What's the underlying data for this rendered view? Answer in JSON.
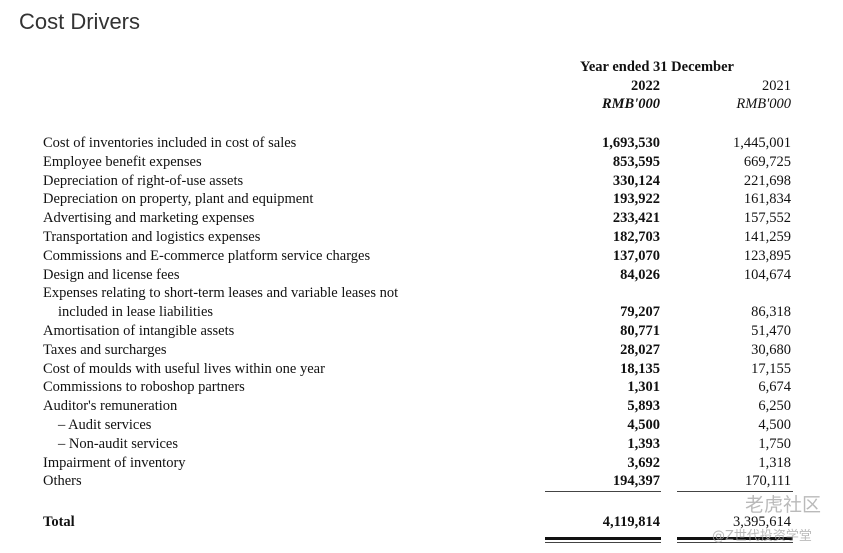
{
  "title": "Cost Drivers",
  "header": {
    "period": "Year ended 31 December",
    "col1_year": "2022",
    "col1_unit": "RMB'000",
    "col2_year": "2021",
    "col2_unit": "RMB'000"
  },
  "rows": [
    {
      "label": "Cost of inventories included in cost of sales",
      "v2022": "1,693,530",
      "v2021": "1,445,001"
    },
    {
      "label": "Employee benefit expenses",
      "v2022": "853,595",
      "v2021": "669,725"
    },
    {
      "label": "Depreciation of right-of-use assets",
      "v2022": "330,124",
      "v2021": "221,698"
    },
    {
      "label": "Depreciation on property, plant and equipment",
      "v2022": "193,922",
      "v2021": "161,834"
    },
    {
      "label": "Advertising and marketing expenses",
      "v2022": "233,421",
      "v2021": "157,552"
    },
    {
      "label": "Transportation and logistics expenses",
      "v2022": "182,703",
      "v2021": "141,259"
    },
    {
      "label": "Commissions and E-commerce platform service charges",
      "v2022": "137,070",
      "v2021": "123,895"
    },
    {
      "label": "Design and license fees",
      "v2022": "84,026",
      "v2021": "104,674"
    },
    {
      "label": "Expenses relating to short-term leases and variable leases not",
      "label2": "included in lease liabilities",
      "v2022": "79,207",
      "v2021": "86,318"
    },
    {
      "label": "Amortisation of intangible assets",
      "v2022": "80,771",
      "v2021": "51,470"
    },
    {
      "label": "Taxes and surcharges",
      "v2022": "28,027",
      "v2021": "30,680"
    },
    {
      "label": "Cost of moulds with useful lives within one year",
      "v2022": "18,135",
      "v2021": "17,155"
    },
    {
      "label": "Commissions to roboshop partners",
      "v2022": "1,301",
      "v2021": "6,674"
    },
    {
      "label": "Auditor's remuneration",
      "v2022": "5,893",
      "v2021": "6,250"
    },
    {
      "label": "– Audit services",
      "v2022": "4,500",
      "v2021": "4,500",
      "indent": true
    },
    {
      "label": "– Non-audit services",
      "v2022": "1,393",
      "v2021": "1,750",
      "indent": true
    },
    {
      "label": "Impairment of inventory",
      "v2022": "3,692",
      "v2021": "1,318"
    },
    {
      "label": "Others",
      "v2022": "194,397",
      "v2021": "170,111"
    }
  ],
  "total": {
    "label": "Total",
    "v2022": "4,119,814",
    "v2021": "3,395,614"
  },
  "watermark": {
    "line1": "老虎社区",
    "line2": "@Z世代投资学堂"
  }
}
